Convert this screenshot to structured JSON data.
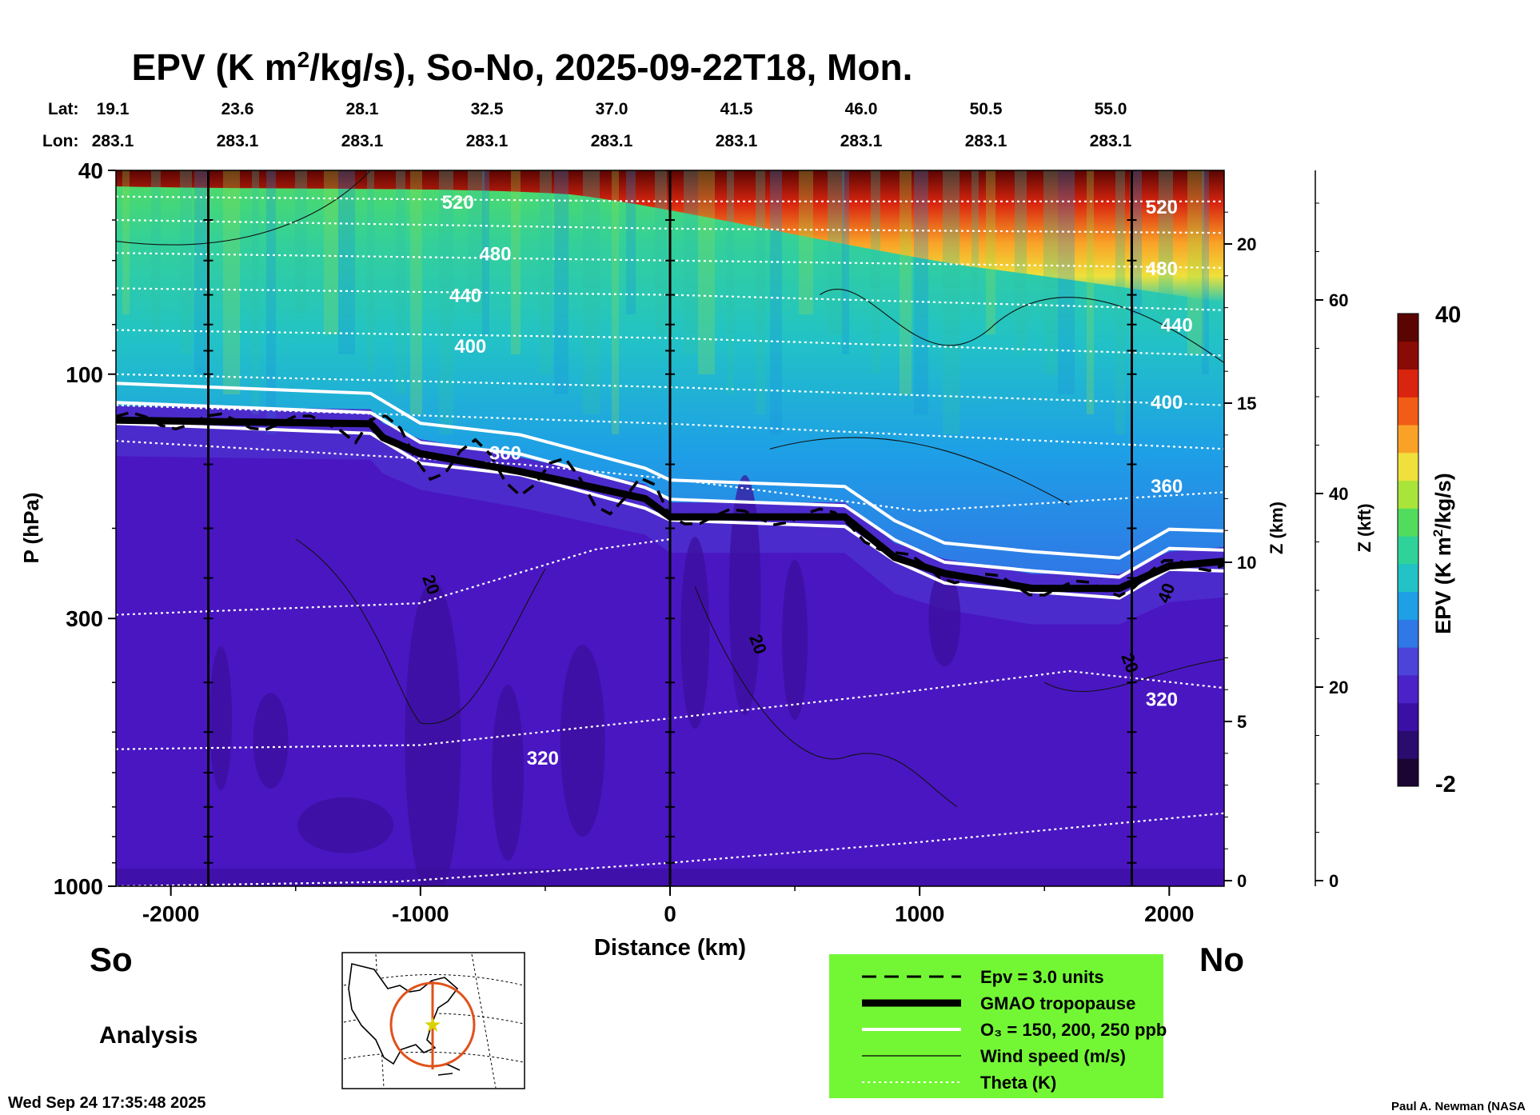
{
  "chart_data": {
    "type": "heatmap",
    "title": "EPV (K m²/kg/s), So-No, 2025-09-22T18, Mon.",
    "xlabel": "Distance (km)",
    "ylabel": "P (hPa)",
    "z_label": "Z (km)",
    "zf_label": "Z (kft)",
    "colorbar_label": "EPV (K m²/kg/s)",
    "colorbar_range": [
      -2,
      40
    ],
    "xlim": [
      -2220,
      2220
    ],
    "ylim": [
      1000,
      40
    ],
    "x_ticks": [
      -2000,
      -1000,
      0,
      1000,
      2000
    ],
    "x_tick_labels": [
      "-2000",
      "-1000",
      "0",
      "1000",
      "2000"
    ],
    "y_ticks": [
      40,
      100,
      300,
      1000
    ],
    "y_tick_labels": [
      "40",
      "100",
      "300",
      "1000"
    ],
    "z_km_ticks": [
      0,
      5,
      10,
      15,
      20
    ],
    "z_km_labels": [
      "0",
      "5",
      "10",
      "15",
      "20"
    ],
    "z_kft_ticks": [
      0,
      20,
      40,
      60
    ],
    "z_kft_labels": [
      "0",
      "20",
      "40",
      "60"
    ],
    "lat_label": "Lat:",
    "lon_label": "Lon:",
    "lat_values": [
      "19.1",
      "23.6",
      "28.1",
      "32.5",
      "37.0",
      "41.5",
      "46.0",
      "50.5",
      "55.0"
    ],
    "lon_values": [
      "283.1",
      "283.1",
      "283.1",
      "283.1",
      "283.1",
      "283.1",
      "283.1",
      "283.1",
      "283.1"
    ],
    "left_end_label": "So",
    "right_end_label": "No",
    "product_label": "Analysis",
    "timestamp": "Wed Sep 24 17:35:48 2025",
    "credit": "Paul A. Newman (NASA",
    "vertical_markers_km": [
      -1850,
      0,
      1850
    ],
    "theta_levels": [
      {
        "label": "520",
        "at_km": -850
      },
      {
        "label": "480",
        "at_km": -700
      },
      {
        "label": "440",
        "at_km": -820
      },
      {
        "label": "400",
        "at_km": -800
      },
      {
        "label": "360",
        "at_km": -660
      },
      {
        "label": "320",
        "at_km": -510
      },
      {
        "label": "520",
        "at_km": 1970
      },
      {
        "label": "480",
        "at_km": 1970
      },
      {
        "label": "440",
        "at_km": 2030
      },
      {
        "label": "400",
        "at_km": 1990
      },
      {
        "label": "360",
        "at_km": 1990
      },
      {
        "label": "320",
        "at_km": 1970
      }
    ],
    "wind_labels": [
      "20",
      "20",
      "20",
      "40"
    ],
    "tropopause_hpa": {
      "x_km": [
        -2220,
        -1200,
        -1150,
        -1000,
        -600,
        -100,
        0,
        700,
        900,
        1100,
        1450,
        1800,
        2000,
        2220
      ],
      "p": [
        123,
        125,
        133,
        143,
        155,
        175,
        190,
        190,
        228,
        245,
        262,
        262,
        237,
        232
      ]
    },
    "colorscale": [
      "#1a0533",
      "#2a0b6e",
      "#3a0fa3",
      "#4a22c7",
      "#4c44d9",
      "#2f78e6",
      "#1e9fe6",
      "#22c2c6",
      "#2fd39a",
      "#52dc5e",
      "#a9e43a",
      "#efe03b",
      "#f9a227",
      "#f25c17",
      "#d9250f",
      "#8a0a05",
      "#5a0502"
    ],
    "legend": {
      "items": [
        {
          "label": "Epv = 3.0 units",
          "style": "dashed"
        },
        {
          "label": "GMAO tropopause",
          "style": "thick"
        },
        {
          "label": "O₃ = 150, 200, 250 ppb",
          "style": "white"
        },
        {
          "label": "Wind speed (m/s)",
          "style": "thin"
        },
        {
          "label": "Theta (K)",
          "style": "dotted"
        }
      ],
      "background": "#73f735"
    }
  }
}
